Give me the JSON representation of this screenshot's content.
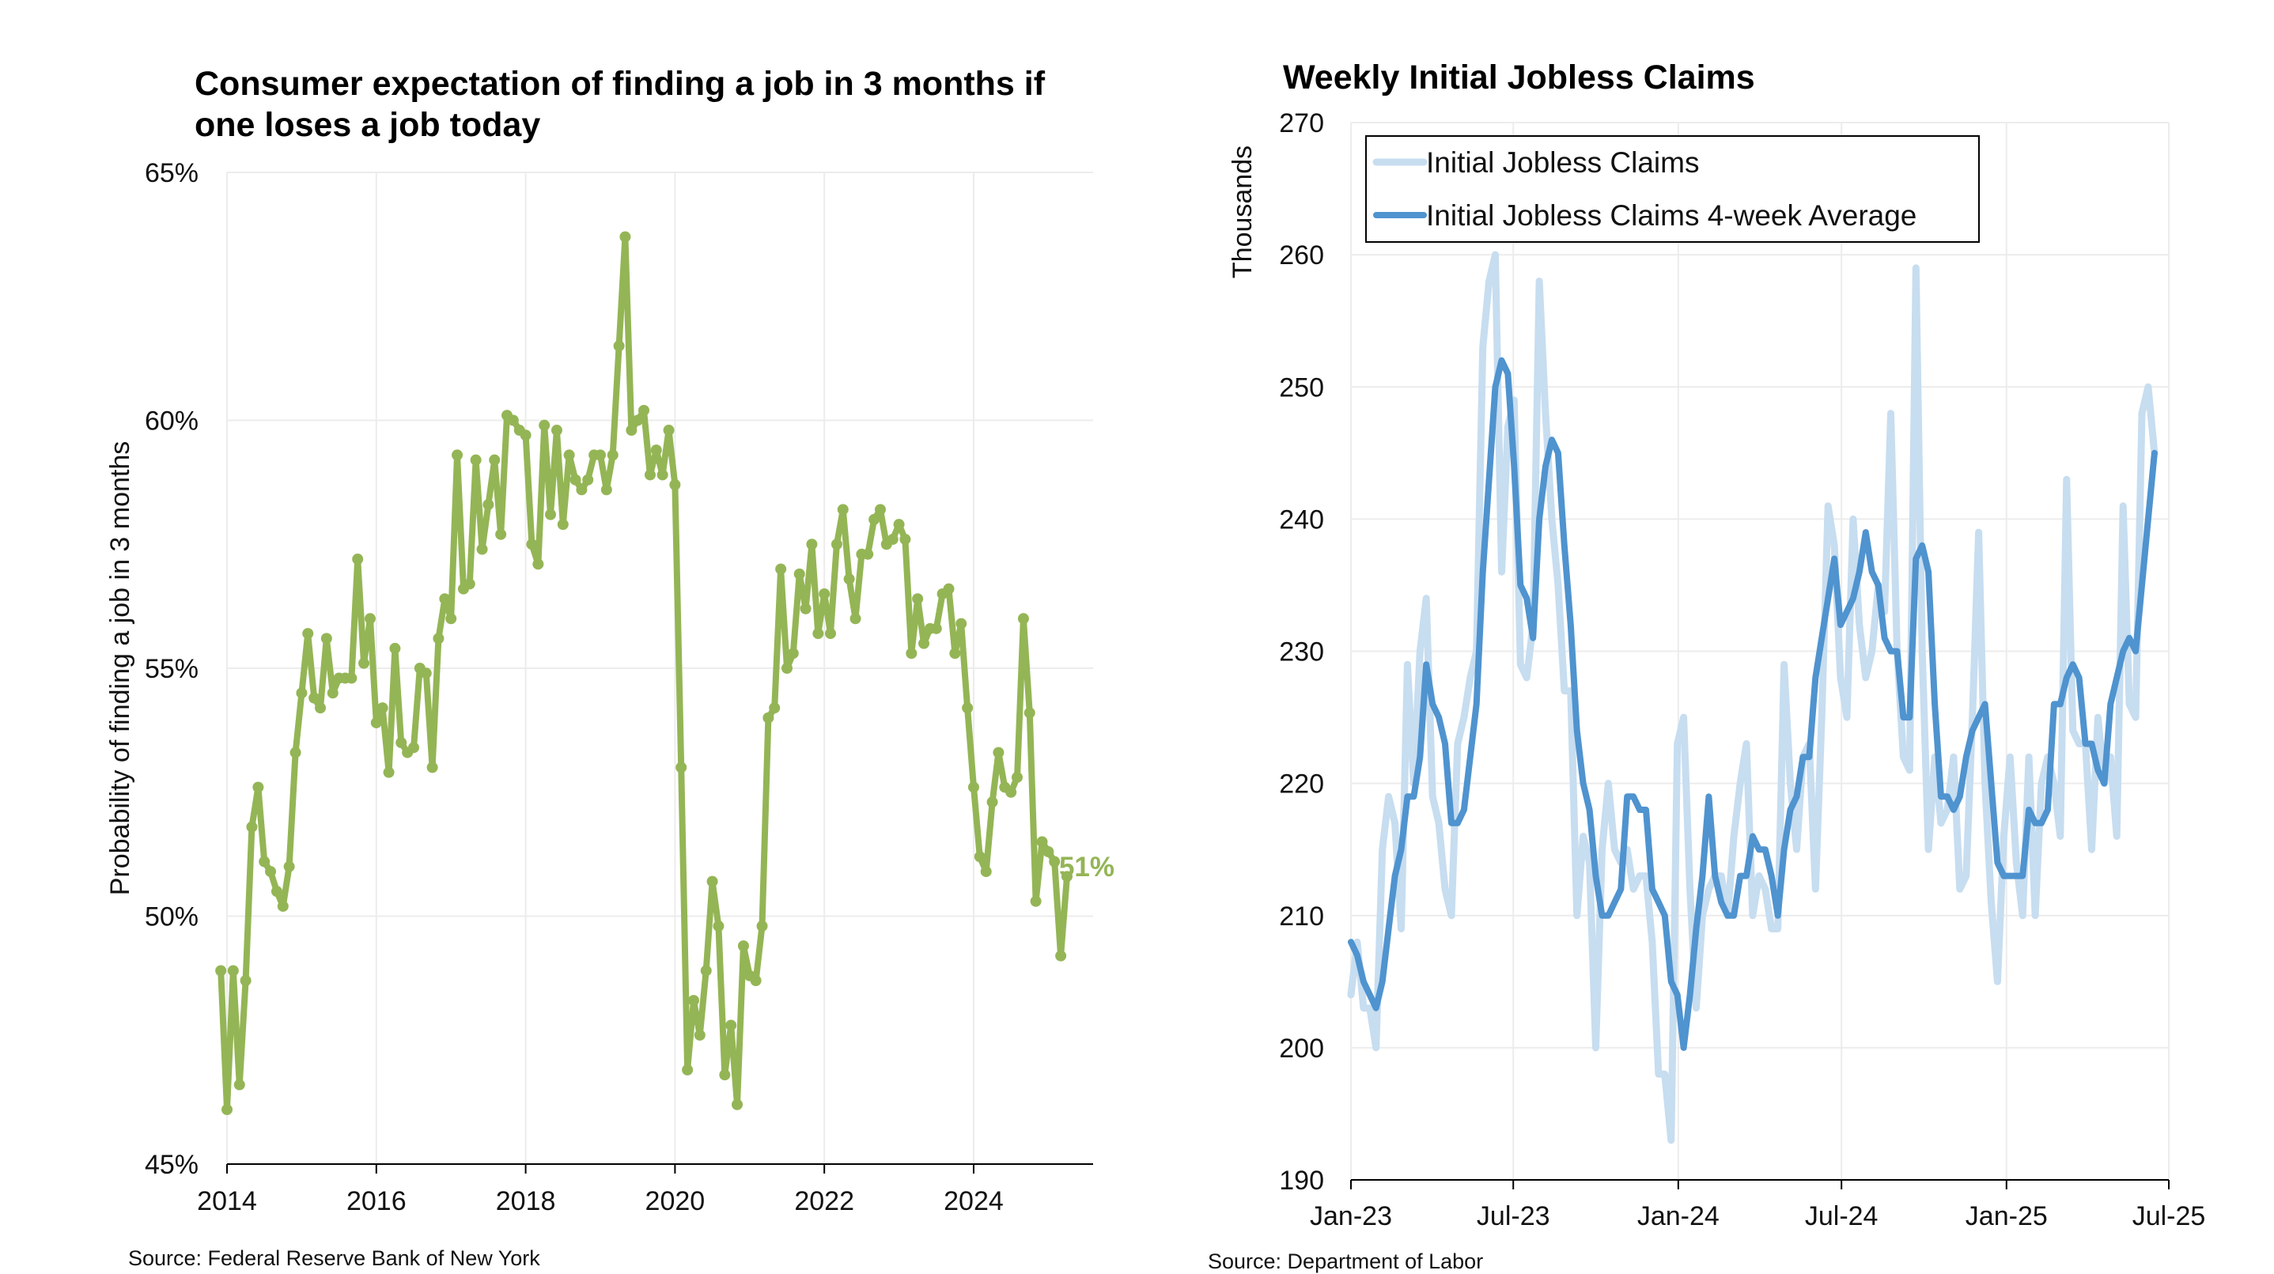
{
  "colors": {
    "green": "#94b555",
    "light_blue": "#c7ddf0",
    "dark_blue": "#4f93cf",
    "grid": "#ececec",
    "axis": "#000000"
  },
  "chart_data": [
    {
      "type": "line",
      "title": "Consumer expectation of finding a job in 3 months if one loses a job today",
      "xlabel": "",
      "ylabel": "Probability of finding a job in 3 months",
      "source": "Source: Federal Reserve Bank of New York",
      "ylim": [
        45,
        65
      ],
      "xlim": [
        2014,
        2025.6
      ],
      "yticks": [
        "45%",
        "50%",
        "55%",
        "60%",
        "65%"
      ],
      "yticks_values": [
        45,
        50,
        55,
        60,
        65
      ],
      "xticks": [
        "2014",
        "2016",
        "2018",
        "2020",
        "2022",
        "2024"
      ],
      "xticks_values": [
        2014,
        2016,
        2018,
        2020,
        2022,
        2024
      ],
      "grid": true,
      "annotation": "51%",
      "series": [
        {
          "markers": true,
          "x": [
            2013.917,
            2014.0,
            2014.083,
            2014.167,
            2014.25,
            2014.333,
            2014.417,
            2014.5,
            2014.583,
            2014.667,
            2014.75,
            2014.833,
            2014.917,
            2015.0,
            2015.083,
            2015.167,
            2015.25,
            2015.333,
            2015.417,
            2015.5,
            2015.583,
            2015.667,
            2015.75,
            2015.833,
            2015.917,
            2016.0,
            2016.083,
            2016.167,
            2016.25,
            2016.333,
            2016.417,
            2016.5,
            2016.583,
            2016.667,
            2016.75,
            2016.833,
            2016.917,
            2017.0,
            2017.083,
            2017.167,
            2017.25,
            2017.333,
            2017.417,
            2017.5,
            2017.583,
            2017.667,
            2017.75,
            2017.833,
            2017.917,
            2018.0,
            2018.083,
            2018.167,
            2018.25,
            2018.333,
            2018.417,
            2018.5,
            2018.583,
            2018.667,
            2018.75,
            2018.833,
            2018.917,
            2019.0,
            2019.083,
            2019.167,
            2019.25,
            2019.333,
            2019.417,
            2019.5,
            2019.583,
            2019.667,
            2019.75,
            2019.833,
            2019.917,
            2020.0,
            2020.083,
            2020.167,
            2020.25,
            2020.333,
            2020.417,
            2020.5,
            2020.583,
            2020.667,
            2020.75,
            2020.833,
            2020.917,
            2021.0,
            2021.083,
            2021.167,
            2021.25,
            2021.333,
            2021.417,
            2021.5,
            2021.583,
            2021.667,
            2021.75,
            2021.833,
            2021.917,
            2022.0,
            2022.083,
            2022.167,
            2022.25,
            2022.333,
            2022.417,
            2022.5,
            2022.583,
            2022.667,
            2022.75,
            2022.833,
            2022.917,
            2023.0,
            2023.083,
            2023.167,
            2023.25,
            2023.333,
            2023.417,
            2023.5,
            2023.583,
            2023.667,
            2023.75,
            2023.833,
            2023.917,
            2024.0,
            2024.083,
            2024.167,
            2024.25,
            2024.333,
            2024.417,
            2024.5,
            2024.583,
            2024.667,
            2024.75,
            2024.833,
            2024.917,
            2025.0,
            2025.083,
            2025.167,
            2025.25
          ],
          "values": [
            48.9,
            46.1,
            48.9,
            46.6,
            48.7,
            51.8,
            52.6,
            51.1,
            50.9,
            50.5,
            50.2,
            51.0,
            53.3,
            54.5,
            55.7,
            54.4,
            54.2,
            55.6,
            54.5,
            54.8,
            54.8,
            54.8,
            57.2,
            55.1,
            56.0,
            53.9,
            54.2,
            52.9,
            55.4,
            53.5,
            53.3,
            53.4,
            55.0,
            54.9,
            53.0,
            55.6,
            56.4,
            56.0,
            59.3,
            56.6,
            56.7,
            59.2,
            57.4,
            58.3,
            59.2,
            57.7,
            60.1,
            60.0,
            59.8,
            59.7,
            57.5,
            57.1,
            59.9,
            58.1,
            59.8,
            57.9,
            59.3,
            58.8,
            58.6,
            58.8,
            59.3,
            59.3,
            58.6,
            59.3,
            61.5,
            63.7,
            59.8,
            60.0,
            60.2,
            58.9,
            59.4,
            58.9,
            59.8,
            58.7,
            53.0,
            46.9,
            48.3,
            47.6,
            48.9,
            50.7,
            49.8,
            46.8,
            47.8,
            46.2,
            49.4,
            48.8,
            48.7,
            49.8,
            54.0,
            54.2,
            57.0,
            55.0,
            55.3,
            56.9,
            56.2,
            57.5,
            55.7,
            56.5,
            55.7,
            57.5,
            58.2,
            56.8,
            56.0,
            57.3,
            57.3,
            58.0,
            58.2,
            57.5,
            57.6,
            57.9,
            57.6,
            55.3,
            56.4,
            55.5,
            55.8,
            55.8,
            56.5,
            56.6,
            55.3,
            55.9,
            54.2,
            52.6,
            51.2,
            50.9,
            52.3,
            53.3,
            52.6,
            52.5,
            52.8,
            56.0,
            54.1,
            50.3,
            51.5,
            51.3,
            51.1,
            49.2,
            50.8
          ]
        }
      ]
    },
    {
      "type": "line",
      "title": "Weekly Initial Jobless Claims",
      "xlabel": "",
      "ylabel": "Thousands",
      "source": "Source: Department of Labor",
      "ylim": [
        190,
        270
      ],
      "xlim": [
        "2023-01-01",
        "2025-07-01"
      ],
      "yticks": [
        "190",
        "200",
        "210",
        "220",
        "230",
        "240",
        "250",
        "260",
        "270"
      ],
      "xticks": [
        "Jan-23",
        "Jul-23",
        "Jan-24",
        "Jul-24",
        "Jan-25",
        "Jul-25"
      ],
      "xticks_values": [
        "2023-01-01",
        "2023-07-01",
        "2024-01-01",
        "2024-07-01",
        "2025-01-01",
        "2025-07-01"
      ],
      "grid": true,
      "legend_position": "top-left",
      "x": [
        "2023-01-01",
        "2023-01-08",
        "2023-01-15",
        "2023-01-22",
        "2023-01-29",
        "2023-02-05",
        "2023-02-12",
        "2023-02-19",
        "2023-02-26",
        "2023-03-05",
        "2023-03-12",
        "2023-03-19",
        "2023-03-26",
        "2023-04-02",
        "2023-04-09",
        "2023-04-16",
        "2023-04-23",
        "2023-04-30",
        "2023-05-07",
        "2023-05-14",
        "2023-05-21",
        "2023-05-28",
        "2023-06-04",
        "2023-06-11",
        "2023-06-18",
        "2023-06-25",
        "2023-07-02",
        "2023-07-09",
        "2023-07-16",
        "2023-07-23",
        "2023-07-30",
        "2023-08-06",
        "2023-08-13",
        "2023-08-20",
        "2023-08-27",
        "2023-09-03",
        "2023-09-10",
        "2023-09-17",
        "2023-09-24",
        "2023-10-01",
        "2023-10-08",
        "2023-10-15",
        "2023-10-22",
        "2023-10-29",
        "2023-11-05",
        "2023-11-12",
        "2023-11-19",
        "2023-11-26",
        "2023-12-03",
        "2023-12-10",
        "2023-12-17",
        "2023-12-24",
        "2023-12-31",
        "2024-01-07",
        "2024-01-14",
        "2024-01-21",
        "2024-01-28",
        "2024-02-04",
        "2024-02-11",
        "2024-02-18",
        "2024-02-25",
        "2024-03-03",
        "2024-03-10",
        "2024-03-17",
        "2024-03-24",
        "2024-03-31",
        "2024-04-07",
        "2024-04-14",
        "2024-04-21",
        "2024-04-28",
        "2024-05-05",
        "2024-05-12",
        "2024-05-19",
        "2024-05-26",
        "2024-06-02",
        "2024-06-09",
        "2024-06-16",
        "2024-06-23",
        "2024-06-30",
        "2024-07-07",
        "2024-07-14",
        "2024-07-21",
        "2024-07-28",
        "2024-08-04",
        "2024-08-11",
        "2024-08-18",
        "2024-08-25",
        "2024-09-01",
        "2024-09-08",
        "2024-09-15",
        "2024-09-22",
        "2024-09-29",
        "2024-10-06",
        "2024-10-13",
        "2024-10-20",
        "2024-10-27",
        "2024-11-03",
        "2024-11-10",
        "2024-11-17",
        "2024-11-24",
        "2024-12-01",
        "2024-12-08",
        "2024-12-15",
        "2024-12-22",
        "2024-12-29",
        "2025-01-05",
        "2025-01-12",
        "2025-01-19",
        "2025-01-26",
        "2025-02-02",
        "2025-02-09",
        "2025-02-16",
        "2025-02-23",
        "2025-03-02",
        "2025-03-09",
        "2025-03-16",
        "2025-03-23",
        "2025-03-30",
        "2025-04-06",
        "2025-04-13",
        "2025-04-20",
        "2025-04-27",
        "2025-05-04",
        "2025-05-11",
        "2025-05-18",
        "2025-05-25",
        "2025-06-01",
        "2025-06-08",
        "2025-06-15"
      ],
      "series": [
        {
          "name": "Initial Jobless Claims",
          "values": [
            204,
            208,
            203,
            203,
            200,
            215,
            219,
            217,
            209,
            229,
            220,
            230,
            234,
            219,
            217,
            212,
            210,
            223,
            225,
            228,
            230,
            253,
            258,
            260,
            236,
            247,
            249,
            229,
            228,
            232,
            258,
            248,
            240,
            235,
            227,
            227,
            210,
            216,
            214,
            200,
            215,
            220,
            215,
            214,
            215,
            212,
            213,
            213,
            208,
            198,
            198,
            193,
            223,
            225,
            212,
            203,
            210,
            212,
            213,
            213,
            210,
            216,
            220,
            223,
            210,
            213,
            212,
            209,
            209,
            229,
            220,
            215,
            222,
            223,
            212,
            225,
            241,
            238,
            228,
            225,
            240,
            232,
            228,
            230,
            235,
            233,
            248,
            230,
            222,
            221,
            259,
            230,
            215,
            222,
            217,
            218,
            222,
            212,
            213,
            225,
            239,
            220,
            211,
            205,
            216,
            222,
            214,
            210,
            222,
            210,
            220,
            222,
            220,
            216,
            243,
            224,
            223,
            223,
            215,
            225,
            220,
            222,
            216,
            241,
            226,
            225,
            248,
            250,
            245
          ],
          "color_key": "light_blue"
        },
        {
          "name": "Initial Jobless Claims 4-week Average",
          "values": [
            208,
            207,
            205,
            204,
            203,
            205,
            209,
            213,
            215,
            219,
            219,
            222,
            229,
            226,
            225,
            223,
            217,
            217,
            218,
            222,
            226,
            236,
            243,
            250,
            252,
            251,
            244,
            235,
            234,
            231,
            240,
            244,
            246,
            245,
            238,
            232,
            224,
            220,
            218,
            213,
            210,
            210,
            211,
            212,
            219,
            219,
            218,
            218,
            212,
            211,
            210,
            205,
            204,
            200,
            204,
            209,
            213,
            219,
            213,
            211,
            210,
            210,
            213,
            213,
            216,
            215,
            215,
            213,
            210,
            215,
            218,
            219,
            222,
            222,
            228,
            231,
            234,
            237,
            232,
            233,
            234,
            236,
            239,
            236,
            235,
            231,
            230,
            230,
            225,
            225,
            237,
            238,
            236,
            226,
            219,
            219,
            218,
            219,
            222,
            224,
            225,
            226,
            220,
            214,
            213,
            213,
            213,
            213,
            218,
            217,
            217,
            218,
            226,
            226,
            228,
            229,
            228,
            223,
            223,
            221,
            220,
            226,
            228,
            230,
            231,
            230,
            235,
            240,
            245
          ],
          "color_key": "dark_blue"
        }
      ]
    }
  ]
}
